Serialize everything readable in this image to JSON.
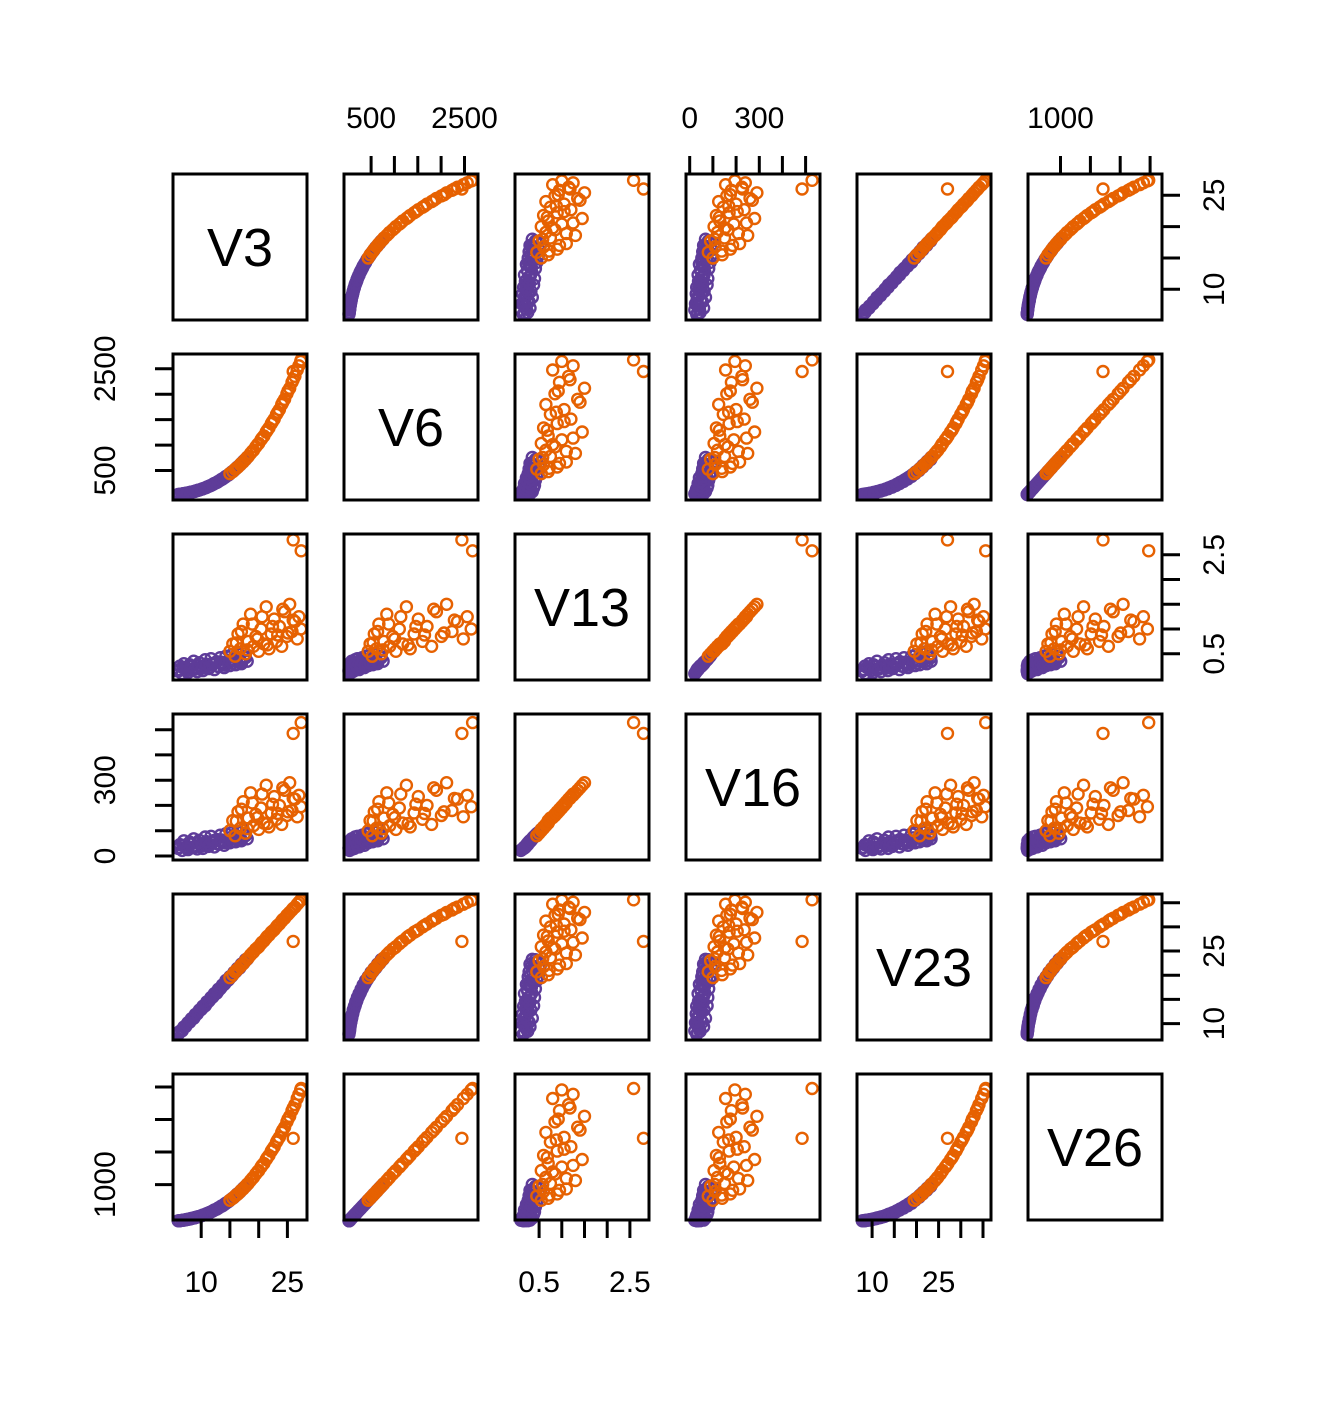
{
  "figure": {
    "background": "#FFFFFF",
    "description": "R pairs scatterplot matrix of six variables with two color groups"
  },
  "chart_data": {
    "type": "scatter",
    "layout": "pairs-matrix-6x6",
    "title": "",
    "variables": [
      "V3",
      "V6",
      "V13",
      "V16",
      "V23",
      "V26"
    ],
    "diagonal_labels": [
      "V3",
      "V6",
      "V13",
      "V16",
      "V23",
      "V26"
    ],
    "grid": false,
    "legend": "none",
    "axis_ranges": {
      "V3": [
        5.1,
        28.4
      ],
      "V6": [
        -80,
        2790
      ],
      "V13": [
        -0.03,
        2.92
      ],
      "V16": [
        -16,
        562
      ],
      "V23": [
        6.6,
        36.8
      ],
      "V26": [
        455,
        2700
      ]
    },
    "axis_ticks": {
      "V3": [
        10,
        15,
        20,
        25
      ],
      "V6": [
        500,
        1000,
        1500,
        2000,
        2500
      ],
      "V13": [
        0.5,
        1.0,
        1.5,
        2.0,
        2.5
      ],
      "V16": [
        0,
        100,
        200,
        300,
        400,
        500
      ],
      "V23": [
        10,
        15,
        20,
        25,
        30,
        35
      ],
      "V26": [
        1000,
        1500,
        2000,
        2500
      ]
    },
    "axis_labeled_ticks": {
      "V3": [
        10,
        25
      ],
      "V6": [
        500,
        2500
      ],
      "V13": [
        0.5,
        2.5
      ],
      "V16": [
        0,
        300
      ],
      "V23": [
        10,
        25
      ],
      "V26": [
        1000
      ]
    },
    "axes_layout": {
      "top_label_columns": [
        2,
        4,
        6
      ],
      "bottom_label_columns": [
        1,
        3,
        5
      ],
      "left_label_rows": [
        2,
        4,
        6
      ],
      "right_label_rows": [
        1,
        3,
        5
      ]
    },
    "marker": {
      "shape": "open-circle",
      "radius": 5.5,
      "stroke_width": 2.4
    },
    "colors": {
      "purple": "#5E3C99",
      "orange": "#E66101"
    },
    "point_columns": [
      "V3",
      "V6",
      "V13",
      "V16",
      "V23",
      "V26"
    ],
    "groups": [
      {
        "name": "group-purple",
        "color": "#5E3C99",
        "points": [
          [
            6.0,
            28,
            0.15,
            30,
            7.8,
            442
          ],
          [
            6.3,
            33,
            0.25,
            45,
            8.4,
            445
          ],
          [
            6.7,
            39,
            0.1,
            22,
            8.5,
            450
          ],
          [
            7.0,
            45,
            0.3,
            60,
            9.3,
            454
          ],
          [
            7.3,
            51,
            0.2,
            35,
            9.4,
            459
          ],
          [
            7.7,
            59,
            0.12,
            25,
            10.2,
            465
          ],
          [
            8.0,
            67,
            0.28,
            55,
            10.3,
            471
          ],
          [
            8.3,
            75,
            0.18,
            32,
            11.0,
            478
          ],
          [
            8.7,
            85,
            0.35,
            68,
            11.1,
            485
          ],
          [
            9.0,
            95,
            0.22,
            40,
            11.9,
            493
          ],
          [
            9.3,
            106,
            0.14,
            28,
            12.0,
            501
          ],
          [
            9.7,
            118,
            0.32,
            62,
            12.8,
            510
          ],
          [
            10.0,
            130,
            0.24,
            48,
            12.9,
            520
          ],
          [
            10.3,
            143,
            0.16,
            30,
            13.6,
            530
          ],
          [
            10.7,
            158,
            0.38,
            75,
            13.7,
            542
          ],
          [
            11.0,
            173,
            0.26,
            50,
            14.5,
            553
          ],
          [
            11.3,
            189,
            0.2,
            38,
            14.6,
            565
          ],
          [
            11.7,
            207,
            0.4,
            78,
            15.4,
            579
          ],
          [
            12.0,
            225,
            0.28,
            52,
            15.5,
            593
          ],
          [
            12.3,
            244,
            0.18,
            36,
            16.2,
            608
          ],
          [
            12.7,
            264,
            0.34,
            65,
            16.3,
            623
          ],
          [
            13.0,
            286,
            0.24,
            46,
            17.1,
            640
          ],
          [
            13.3,
            308,
            0.42,
            82,
            17.2,
            657
          ],
          [
            13.7,
            332,
            0.3,
            58,
            18.0,
            675
          ],
          [
            14.0,
            357,
            0.22,
            42,
            18.1,
            694
          ],
          [
            14.3,
            383,
            0.45,
            88,
            18.9,
            714
          ],
          [
            14.7,
            410,
            0.32,
            60,
            19.0,
            736
          ],
          [
            15.0,
            439,
            0.26,
            52,
            19.7,
            758
          ],
          [
            15.3,
            468,
            0.48,
            92,
            19.8,
            780
          ],
          [
            15.7,
            500,
            0.36,
            70,
            20.6,
            805
          ],
          [
            16.0,
            532,
            0.28,
            56,
            20.7,
            830
          ],
          [
            16.3,
            566,
            0.5,
            95,
            21.4,
            856
          ],
          [
            16.7,
            602,
            0.38,
            74,
            21.5,
            883
          ],
          [
            17.0,
            639,
            0.3,
            60,
            22.3,
            911
          ],
          [
            17.3,
            677,
            0.55,
            105,
            22.4,
            941
          ],
          [
            17.7,
            717,
            0.42,
            80,
            23.2,
            972
          ],
          [
            18.0,
            758,
            0.35,
            68,
            23.3,
            1003
          ],
          [
            6.2,
            30,
            0.18,
            34,
            8.1,
            444
          ],
          [
            6.8,
            42,
            0.22,
            42,
            8.9,
            452
          ],
          [
            7.5,
            55,
            0.16,
            30,
            9.8,
            462
          ],
          [
            8.2,
            72,
            0.24,
            47,
            10.7,
            476
          ],
          [
            8.9,
            92,
            0.19,
            36,
            11.5,
            490
          ],
          [
            9.5,
            112,
            0.27,
            52,
            12.4,
            505
          ],
          [
            10.2,
            139,
            0.21,
            40,
            13.2,
            526
          ],
          [
            10.9,
            168,
            0.29,
            57,
            14.1,
            549
          ],
          [
            11.5,
            198,
            0.23,
            44,
            14.9,
            572
          ],
          [
            12.2,
            238,
            0.31,
            61,
            15.8,
            602
          ],
          [
            12.9,
            280,
            0.25,
            49,
            16.7,
            635
          ],
          [
            13.5,
            322,
            0.33,
            63,
            17.5,
            668
          ],
          [
            14.2,
            373,
            0.27,
            53,
            18.4,
            707
          ],
          [
            14.9,
            430,
            0.37,
            72,
            19.3,
            751
          ],
          [
            15.5,
            485,
            0.31,
            59,
            20.1,
            792
          ],
          [
            16.2,
            553,
            0.41,
            79,
            21.0,
            847
          ],
          [
            16.9,
            628,
            0.34,
            66,
            21.9,
            903
          ],
          [
            17.5,
            697,
            0.44,
            85,
            22.7,
            956
          ]
        ]
      },
      {
        "name": "group-orange",
        "color": "#E66101",
        "points": [
          [
            15.0,
            439,
            0.55,
            100,
            19.5,
            758
          ],
          [
            15.5,
            479,
            0.7,
            140,
            20.1,
            789
          ],
          [
            15.9,
            523,
            0.45,
            80,
            20.7,
            822
          ],
          [
            16.4,
            568,
            0.9,
            175,
            21.3,
            857
          ],
          [
            16.8,
            616,
            0.6,
            110,
            21.8,
            894
          ],
          [
            17.3,
            667,
            1.1,
            215,
            22.4,
            933
          ],
          [
            17.7,
            721,
            0.5,
            90,
            23.0,
            975
          ],
          [
            18.2,
            777,
            0.75,
            150,
            23.6,
            1018
          ],
          [
            18.6,
            836,
            1.3,
            250,
            24.2,
            1063
          ],
          [
            19.1,
            899,
            0.65,
            120,
            24.8,
            1111
          ],
          [
            19.5,
            964,
            0.85,
            165,
            25.4,
            1162
          ],
          [
            20.0,
            1032,
            0.55,
            105,
            25.9,
            1214
          ],
          [
            20.4,
            1104,
            1.0,
            190,
            26.5,
            1269
          ],
          [
            20.9,
            1178,
            0.7,
            130,
            27.1,
            1326
          ],
          [
            21.3,
            1256,
            1.45,
            280,
            27.7,
            1386
          ],
          [
            21.8,
            1338,
            0.6,
            115,
            28.3,
            1449
          ],
          [
            22.2,
            1422,
            0.9,
            170,
            28.9,
            1514
          ],
          [
            22.7,
            1511,
            1.2,
            235,
            29.4,
            1582
          ],
          [
            23.1,
            1602,
            0.75,
            145,
            30.0,
            1653
          ],
          [
            23.6,
            1698,
            1.05,
            200,
            30.6,
            1726
          ],
          [
            24.0,
            1797,
            0.65,
            125,
            31.2,
            1802
          ],
          [
            24.5,
            1900,
            1.35,
            260,
            31.8,
            1882
          ],
          [
            24.9,
            2007,
            0.85,
            160,
            32.4,
            1964
          ],
          [
            25.4,
            2118,
            1.5,
            290,
            33.0,
            2049
          ],
          [
            25.8,
            2233,
            0.95,
            180,
            33.5,
            2137
          ],
          [
            26.3,
            2351,
            1.15,
            225,
            34.1,
            2229
          ],
          [
            26.7,
            2475,
            0.8,
            155,
            34.7,
            2324
          ],
          [
            27.0,
            2559,
            1.25,
            240,
            35.1,
            2388
          ],
          [
            27.3,
            2645,
            1.0,
            195,
            35.5,
            2455
          ],
          [
            16.1,
            543,
            0.72,
            138,
            21.0,
            838
          ],
          [
            17.0,
            639,
            0.95,
            185,
            22.1,
            911
          ],
          [
            18.0,
            758,
            0.58,
            108,
            23.4,
            1003
          ],
          [
            18.9,
            878,
            1.1,
            210,
            24.6,
            1095
          ],
          [
            19.8,
            1009,
            0.8,
            152,
            25.7,
            1196
          ],
          [
            20.6,
            1137,
            1.25,
            245,
            26.8,
            1294
          ],
          [
            21.5,
            1292,
            0.68,
            128,
            28.0,
            1414
          ],
          [
            22.4,
            1461,
            1.05,
            205,
            29.1,
            1544
          ],
          [
            23.3,
            1645,
            0.88,
            168,
            30.3,
            1686
          ],
          [
            24.2,
            1843,
            1.4,
            270,
            31.5,
            1838
          ],
          [
            25.1,
            2062,
            0.92,
            175,
            32.6,
            2006
          ],
          [
            26.0,
            2285,
            1.18,
            228,
            33.8,
            2177
          ],
          [
            27.4,
            2674,
            2.58,
            528,
            35.6,
            2477
          ],
          [
            26.0,
            2446,
            2.8,
            485,
            27.0,
            1712
          ]
        ]
      }
    ]
  }
}
